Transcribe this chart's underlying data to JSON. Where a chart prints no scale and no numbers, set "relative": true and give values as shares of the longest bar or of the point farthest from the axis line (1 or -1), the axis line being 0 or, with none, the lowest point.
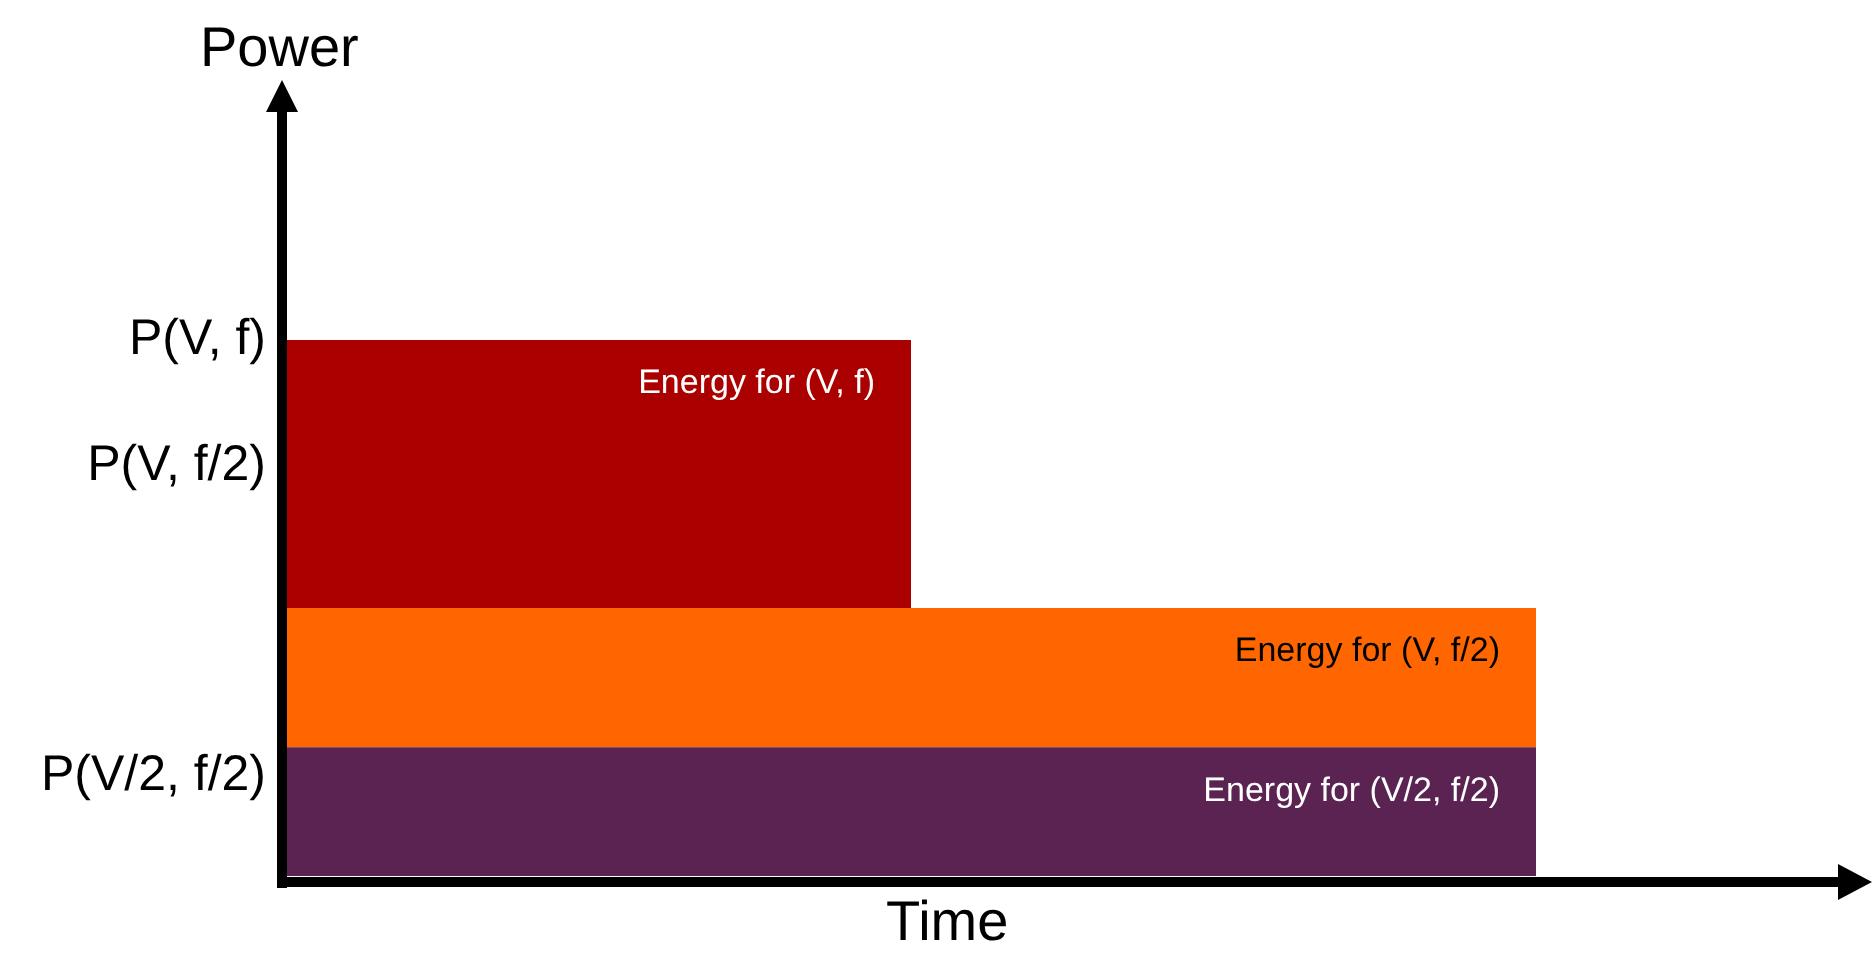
{
  "chart_data": {
    "type": "bar",
    "stacked": true,
    "relative": true,
    "xlabel": "Time",
    "ylabel": "Power",
    "categories": [
      null,
      null
    ],
    "legend": false,
    "series": [
      {
        "name": "Energy for (V/2, f/2)",
        "color": "#5a2352",
        "values": [
          0.24,
          0.24
        ]
      },
      {
        "name": "Energy for (V, f/2)",
        "color": "#ff6600",
        "values": [
          0.26,
          0.26
        ]
      },
      {
        "name": "Energy for (V, f)",
        "color": "#aa0000",
        "values": [
          0.5,
          0
        ]
      }
    ],
    "annotations": [
      "P(V, f)",
      "P(V, f/2)",
      "P(V/2, f/2)"
    ]
  }
}
